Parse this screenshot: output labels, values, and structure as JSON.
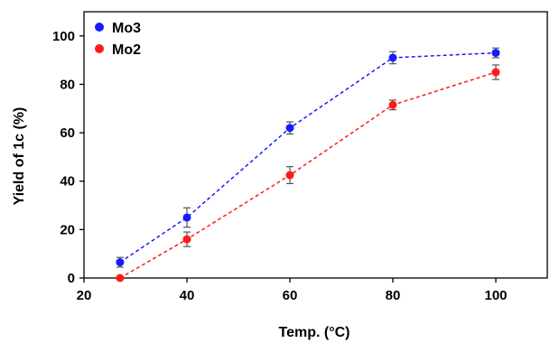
{
  "chart_data": {
    "type": "scatter",
    "title": "",
    "xlabel": "Temp. (°C)",
    "ylabel": "Yield of 1c (%)",
    "xlim": [
      20,
      110
    ],
    "ylim": [
      0,
      110
    ],
    "xticks": [
      20,
      40,
      60,
      80,
      100
    ],
    "yticks": [
      0,
      20,
      40,
      60,
      80,
      100
    ],
    "xtick_labels": [
      "20",
      "40",
      "60",
      "80",
      "100"
    ],
    "ytick_labels": [
      "0",
      "20",
      "40",
      "60",
      "80",
      "100"
    ],
    "grid": false,
    "legend_position": "top-left",
    "line_style": "dashed",
    "series": [
      {
        "name": "Mo3",
        "color": "#1a1aff",
        "x": [
          27,
          40,
          60,
          80,
          100
        ],
        "y": [
          6.5,
          25,
          62,
          91,
          93
        ],
        "error": [
          2,
          4,
          2.5,
          2.5,
          2
        ]
      },
      {
        "name": "Mo2",
        "color": "#ff1a1a",
        "x": [
          27,
          40,
          60,
          80,
          100
        ],
        "y": [
          0,
          16,
          42.5,
          71.5,
          85
        ],
        "error": [
          0.5,
          3,
          3.5,
          2,
          3
        ]
      }
    ]
  }
}
